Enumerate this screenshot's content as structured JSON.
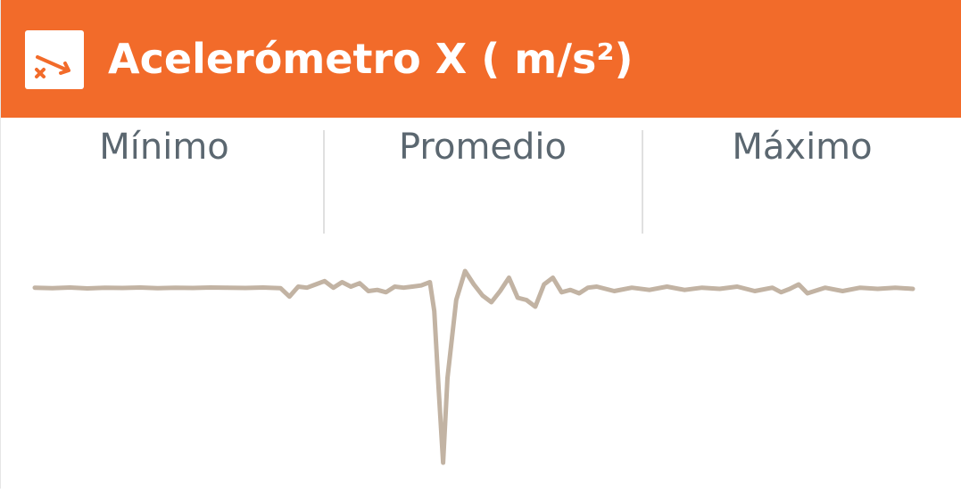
{
  "header": {
    "title": "Acelerómetro X ( m/s²)",
    "icon": "accelerometer-icon",
    "background_color": "#f26b2a"
  },
  "stats": {
    "min_label": "Mínimo",
    "avg_label": "Promedio",
    "max_label": "Máximo"
  },
  "chart_data": {
    "type": "line",
    "line_color": "#c2b3a3",
    "grid": false,
    "x": [
      0,
      2,
      4,
      6,
      8,
      10,
      12,
      14,
      16,
      18,
      20,
      22,
      24,
      26,
      28,
      29,
      30,
      31,
      32,
      33,
      34,
      35,
      36,
      37,
      38,
      39,
      40,
      41,
      42,
      43,
      44,
      45,
      45.5,
      46,
      46.5,
      47,
      48,
      49,
      50,
      51,
      52,
      53,
      54,
      55,
      56,
      57,
      58,
      59,
      60,
      61,
      62,
      63,
      64,
      66,
      68,
      70,
      72,
      74,
      76,
      78,
      80,
      82,
      84,
      85,
      86,
      87,
      88,
      90,
      92,
      94,
      96,
      98,
      100
    ],
    "y": [
      0.05,
      0.03,
      0.06,
      0.02,
      0.05,
      0.04,
      0.06,
      0.03,
      0.05,
      0.04,
      0.06,
      0.05,
      0.04,
      0.06,
      0.03,
      -0.35,
      0.1,
      0.05,
      0.2,
      0.35,
      0.05,
      0.3,
      0.1,
      0.25,
      -0.1,
      -0.05,
      -0.15,
      0.1,
      0.05,
      0.1,
      0.15,
      0.3,
      -1.0,
      -4.5,
      -7.8,
      -4.0,
      -0.5,
      0.8,
      0.2,
      -0.3,
      -0.6,
      -0.1,
      0.5,
      -0.4,
      -0.5,
      -0.8,
      0.2,
      0.5,
      -0.15,
      -0.05,
      -0.2,
      0.05,
      0.1,
      -0.1,
      0.05,
      -0.05,
      0.1,
      -0.05,
      0.05,
      0.0,
      0.1,
      -0.1,
      0.05,
      -0.15,
      0.0,
      0.2,
      -0.2,
      0.05,
      -0.1,
      0.05,
      0.0,
      0.05,
      0.0
    ],
    "ylim": [
      -8,
      1.2
    ]
  }
}
